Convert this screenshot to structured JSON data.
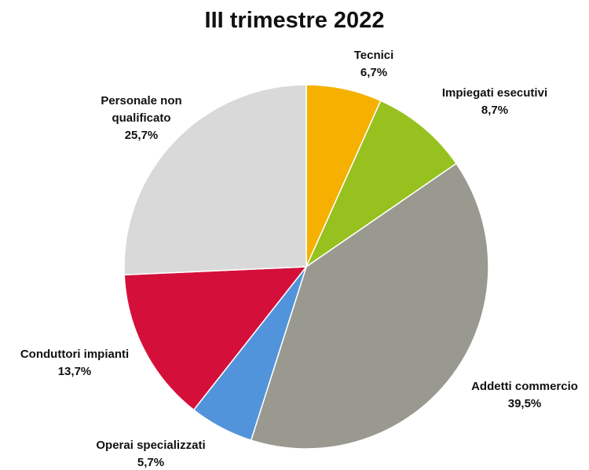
{
  "chart_data": {
    "type": "pie",
    "title": "III trimestre 2022",
    "categories": [
      "Tecnici",
      "Impiegati esecutivi",
      "Addetti commercio",
      "Operai specializzati",
      "Conduttori impianti",
      "Personale non qualificato"
    ],
    "values": [
      6.7,
      8.7,
      39.5,
      5.7,
      13.7,
      25.7
    ],
    "value_labels": [
      "6,7%",
      "8,7%",
      "39,5%",
      "5,7%",
      "13,7%",
      "25,7%"
    ],
    "colors": [
      "#f5b000",
      "#96c11f",
      "#999990",
      "#5294dc",
      "#d4103a",
      "#d9d9d9"
    ]
  }
}
